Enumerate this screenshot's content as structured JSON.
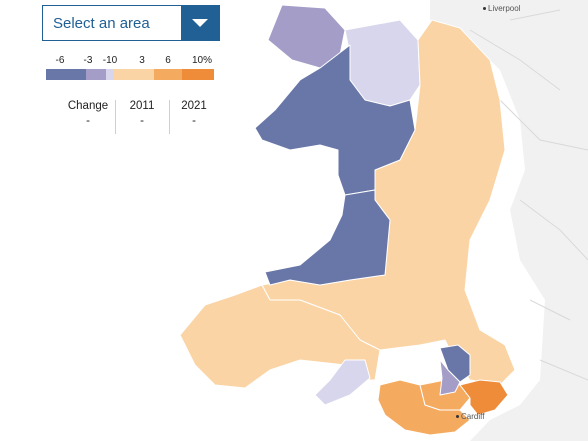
{
  "select": {
    "label": "Select an area"
  },
  "legend": {
    "ticks": [
      "-6",
      "-3",
      "-10",
      "3",
      "6",
      "10%"
    ],
    "colors": [
      "#6977a8",
      "#a39dc8",
      "#d8d6ec",
      "#fad4a4",
      "#f4ab60",
      "#ef8c3a"
    ]
  },
  "stats": {
    "change_label": "Change",
    "change_value": "-",
    "y2011_label": "2011",
    "y2011_value": "-",
    "y2021_label": "2021",
    "y2021_value": "-"
  },
  "cities": {
    "liverpool": "Liverpool",
    "cardiff": "Cardiff"
  },
  "colors": {
    "land_outside": "#f1f1f1",
    "sea": "#ffffff",
    "boundary": "#ffffff",
    "road": "#d9d9d9",
    "accent": "#206095"
  },
  "areas": [
    {
      "name": "anglesey",
      "fill": "#a39dc8"
    },
    {
      "name": "gwynedd-ceredigion",
      "fill": "#6977a8"
    },
    {
      "name": "conwy",
      "fill": "#d8d6ec"
    },
    {
      "name": "east-wales",
      "fill": "#fad4a4"
    },
    {
      "name": "carmarthenshire",
      "fill": "#6977a8"
    },
    {
      "name": "south-west-wales",
      "fill": "#fad4a4"
    },
    {
      "name": "swansea-gower",
      "fill": "#d8d6ec"
    },
    {
      "name": "vale-of-glamorgan",
      "fill": "#f4ab60"
    },
    {
      "name": "cardiff-south",
      "fill": "#f4ab60"
    },
    {
      "name": "newport",
      "fill": "#ef8c3a"
    },
    {
      "name": "valley-north",
      "fill": "#6977a8"
    },
    {
      "name": "valley-south",
      "fill": "#a39dc8"
    }
  ]
}
